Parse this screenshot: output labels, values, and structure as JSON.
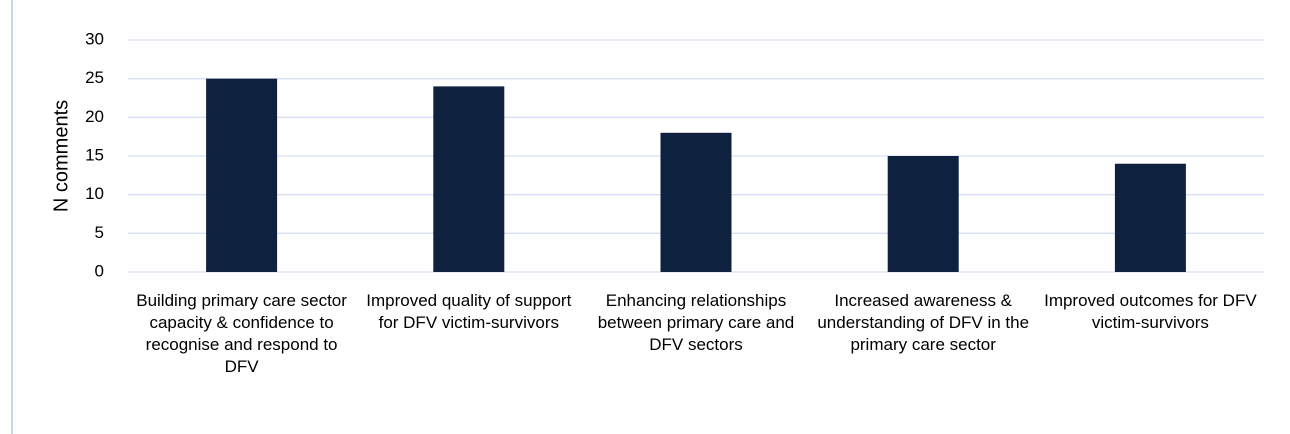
{
  "chart_data": {
    "type": "bar",
    "y_label": "N comments",
    "categories": [
      "Building primary care sector capacity & confidence to recognise and respond to DFV",
      "Improved quality of support for DFV victim-survivors",
      "Enhancing relationships between primary care and DFV sectors",
      "Increased awareness & understanding of DFV in the primary care sector",
      "Improved outcomes for DFV victim-survivors"
    ],
    "values": [
      25,
      24,
      18,
      15,
      14
    ],
    "color": "#0e2240",
    "ylim": [
      0,
      30
    ],
    "yticks": [
      0,
      5,
      10,
      15,
      20,
      25,
      30
    ],
    "grid": true
  }
}
